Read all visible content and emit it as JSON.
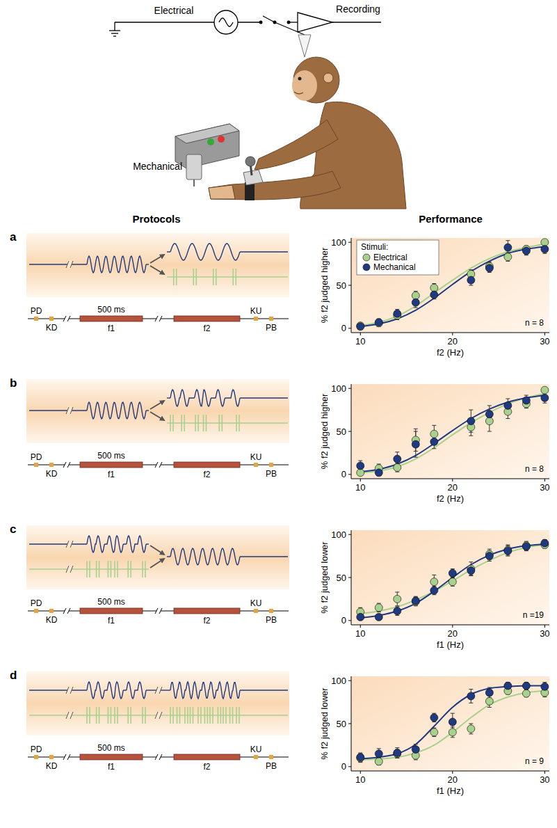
{
  "header": {
    "electrical": "Electrical",
    "recording": "Recording",
    "mechanical": "Mechanical"
  },
  "columns": {
    "protocols": "Protocols",
    "performance": "Performance"
  },
  "timeline": {
    "duration": "500 ms",
    "events": [
      "PD",
      "KD",
      "KU",
      "PB"
    ],
    "stimuli": [
      "f1",
      "f2"
    ]
  },
  "chart_data": [
    {
      "type": "scatter",
      "label": "a",
      "x_label": "f2 (Hz)",
      "y_label": "% f2 judged higher",
      "xlim": [
        9,
        30.5
      ],
      "ylim": [
        -5,
        105
      ],
      "xticks": [
        10,
        20,
        30
      ],
      "yticks": [
        0,
        50,
        100
      ],
      "x": [
        10,
        12,
        14,
        16,
        18,
        22,
        24,
        26,
        28,
        30
      ],
      "series": [
        {
          "name": "Electrical",
          "color": "#a9d18e",
          "marker": "circle",
          "values": [
            3,
            6,
            15,
            38,
            47,
            63,
            72,
            83,
            92,
            100
          ],
          "errors": [
            3,
            4,
            5,
            5,
            5,
            5,
            5,
            5,
            4,
            2
          ],
          "fit": {
            "x": [
              10,
              12,
              14,
              16,
              18,
              20,
              22,
              24,
              26,
              28,
              30
            ],
            "values": [
              3,
              7,
              14,
              26,
              41,
              56,
              70,
              81,
              89,
              94,
              98
            ]
          }
        },
        {
          "name": "Mechanical",
          "color": "#1f3a80",
          "marker": "circle",
          "values": [
            2,
            7,
            17,
            30,
            39,
            56,
            70,
            94,
            90,
            92
          ],
          "errors": [
            3,
            4,
            5,
            6,
            5,
            6,
            5,
            8,
            5,
            5
          ],
          "fit": {
            "x": [
              10,
              12,
              14,
              16,
              18,
              20,
              22,
              24,
              26,
              28,
              30
            ],
            "values": [
              2,
              5,
              11,
              21,
              35,
              51,
              66,
              78,
              87,
              92,
              95
            ]
          }
        }
      ],
      "legend": "top-left",
      "legend_title": "Stimuli:",
      "annotations": [
        "n = 8"
      ]
    },
    {
      "type": "scatter",
      "label": "b",
      "x_label": "f2 (Hz)",
      "y_label": "% f2 judged higher",
      "xlim": [
        9,
        30.5
      ],
      "ylim": [
        -5,
        105
      ],
      "xticks": [
        10,
        20,
        30
      ],
      "yticks": [
        0,
        50,
        100
      ],
      "x": [
        10,
        12,
        14,
        16,
        18,
        22,
        24,
        26,
        28,
        30
      ],
      "series": [
        {
          "name": "Electrical",
          "color": "#a9d18e",
          "marker": "circle",
          "values": [
            2,
            7,
            8,
            40,
            47,
            55,
            62,
            73,
            82,
            98
          ],
          "errors": [
            3,
            5,
            5,
            13,
            10,
            10,
            12,
            8,
            5,
            3
          ],
          "fit": {
            "x": [
              10,
              12,
              14,
              16,
              18,
              20,
              22,
              24,
              26,
              28,
              30
            ],
            "values": [
              2,
              4,
              9,
              18,
              31,
              46,
              60,
              72,
              82,
              89,
              94
            ]
          }
        },
        {
          "name": "Mechanical",
          "color": "#1f3a80",
          "marker": "circle",
          "values": [
            10,
            2,
            18,
            35,
            38,
            62,
            70,
            80,
            86,
            89
          ],
          "errors": [
            6,
            3,
            8,
            15,
            8,
            13,
            10,
            8,
            6,
            6
          ],
          "fit": {
            "x": [
              10,
              12,
              14,
              16,
              18,
              20,
              22,
              24,
              26,
              28,
              30
            ],
            "values": [
              3,
              6,
              12,
              22,
              36,
              51,
              65,
              76,
              84,
              89,
              92
            ]
          }
        }
      ],
      "annotations": [
        "n = 8"
      ]
    },
    {
      "type": "scatter",
      "label": "c",
      "x_label": "f1 (Hz)",
      "y_label": "% f2 judged lower",
      "xlim": [
        9,
        30.5
      ],
      "ylim": [
        -5,
        105
      ],
      "xticks": [
        10,
        20,
        30
      ],
      "yticks": [
        0,
        50,
        100
      ],
      "x": [
        10,
        12,
        14,
        16,
        18,
        20,
        22,
        24,
        26,
        28,
        30
      ],
      "series": [
        {
          "name": "Electrical",
          "color": "#a9d18e",
          "marker": "circle",
          "values": [
            10,
            15,
            25,
            22,
            45,
            45,
            60,
            77,
            82,
            87,
            88
          ],
          "errors": [
            5,
            5,
            8,
            5,
            8,
            5,
            8,
            6,
            6,
            5,
            4
          ],
          "fit": {
            "x": [
              10,
              12,
              14,
              16,
              18,
              20,
              22,
              24,
              26,
              28,
              30
            ],
            "values": [
              8,
              11,
              16,
              24,
              34,
              46,
              59,
              70,
              79,
              85,
              88
            ]
          }
        },
        {
          "name": "Mechanical",
          "color": "#1f3a80",
          "marker": "circle",
          "values": [
            4,
            4,
            11,
            23,
            35,
            55,
            58,
            75,
            81,
            86,
            90
          ],
          "errors": [
            3,
            3,
            5,
            5,
            5,
            5,
            5,
            6,
            6,
            5,
            4
          ],
          "fit": {
            "x": [
              10,
              12,
              14,
              16,
              18,
              20,
              22,
              24,
              26,
              28,
              30
            ],
            "values": [
              3,
              6,
              11,
              20,
              34,
              50,
              65,
              76,
              83,
              87,
              89
            ]
          }
        }
      ],
      "annotations": [
        "n =19"
      ]
    },
    {
      "type": "scatter",
      "label": "d",
      "x_label": "f1 (Hz)",
      "y_label": "% f2 judged lower",
      "xlim": [
        9,
        30.5
      ],
      "ylim": [
        -5,
        105
      ],
      "xticks": [
        10,
        20,
        30
      ],
      "yticks": [
        0,
        50,
        100
      ],
      "x": [
        10,
        12,
        14,
        16,
        18,
        20,
        22,
        24,
        26,
        28,
        30
      ],
      "series": [
        {
          "name": "Electrical",
          "color": "#a9d18e",
          "marker": "circle",
          "values": [
            10,
            6,
            15,
            13,
            40,
            40,
            44,
            76,
            88,
            85,
            86
          ],
          "errors": [
            5,
            4,
            5,
            5,
            5,
            6,
            6,
            7,
            4,
            4,
            5
          ],
          "fit": {
            "x": [
              10,
              12,
              14,
              16,
              18,
              20,
              22,
              24,
              26,
              28,
              30
            ],
            "values": [
              8,
              9,
              11,
              16,
              25,
              40,
              57,
              72,
              81,
              86,
              88
            ]
          }
        },
        {
          "name": "Mechanical",
          "color": "#1f3a80",
          "marker": "circle",
          "values": [
            11,
            15,
            16,
            20,
            57,
            52,
            82,
            86,
            94,
            94,
            93
          ],
          "errors": [
            5,
            6,
            6,
            6,
            5,
            10,
            8,
            6,
            4,
            4,
            5
          ],
          "fit": {
            "x": [
              10,
              12,
              14,
              16,
              18,
              20,
              22,
              24,
              26,
              28,
              30
            ],
            "values": [
              9,
              11,
              15,
              26,
              47,
              69,
              84,
              91,
              93,
              94,
              94
            ]
          }
        }
      ],
      "annotations": [
        "n = 9"
      ]
    }
  ]
}
